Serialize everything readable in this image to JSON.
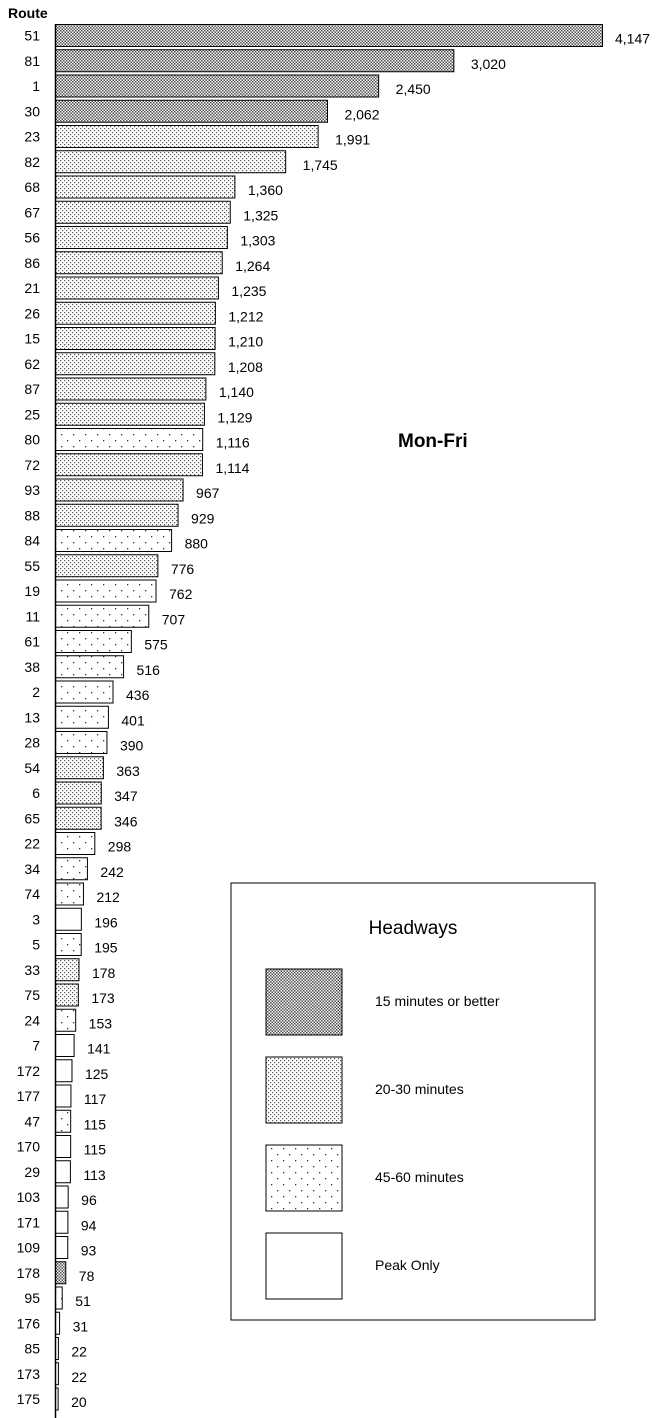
{
  "chart_data": {
    "type": "bar",
    "orientation": "horizontal",
    "title": "Mon-Fri",
    "ylabel": "Route",
    "xlim": [
      0,
      4147
    ],
    "grid": false,
    "legend_placement": "bottom-right",
    "legend": {
      "title": "Headways",
      "entries": [
        {
          "key": "hf",
          "label": "15 minutes or better"
        },
        {
          "key": "m",
          "label": "20-30 minutes"
        },
        {
          "key": "l",
          "label": "45-60 minutes"
        },
        {
          "key": "p",
          "label": "Peak Only"
        }
      ]
    },
    "categories": [
      "51",
      "81",
      "1",
      "30",
      "23",
      "82",
      "68",
      "67",
      "56",
      "86",
      "21",
      "26",
      "15",
      "62",
      "87",
      "25",
      "80",
      "72",
      "93",
      "88",
      "84",
      "55",
      "19",
      "11",
      "61",
      "38",
      "2",
      "13",
      "28",
      "54",
      "6",
      "65",
      "22",
      "34",
      "74",
      "3",
      "5",
      "33",
      "75",
      "24",
      "7",
      "172",
      "177",
      "47",
      "170",
      "29",
      "103",
      "171",
      "109",
      "178",
      "95",
      "176",
      "85",
      "173",
      "175"
    ],
    "values": [
      4147,
      3020,
      2450,
      2062,
      1991,
      1745,
      1360,
      1325,
      1303,
      1264,
      1235,
      1212,
      1210,
      1208,
      1140,
      1129,
      1116,
      1114,
      967,
      929,
      880,
      776,
      762,
      707,
      575,
      516,
      436,
      401,
      390,
      363,
      347,
      346,
      298,
      242,
      212,
      196,
      195,
      178,
      173,
      153,
      141,
      125,
      117,
      115,
      115,
      113,
      96,
      94,
      93,
      78,
      51,
      31,
      22,
      22,
      20
    ],
    "value_labels": [
      "4,147",
      "3,020",
      "2,450",
      "2,062",
      "1,991",
      "1,745",
      "1,360",
      "1,325",
      "1,303",
      "1,264",
      "1,235",
      "1,212",
      "1,210",
      "1,208",
      "1,140",
      "1,129",
      "1,116",
      "1,114",
      "967",
      "929",
      "880",
      "776",
      "762",
      "707",
      "575",
      "516",
      "436",
      "401",
      "390",
      "363",
      "347",
      "346",
      "298",
      "242",
      "212",
      "196",
      "195",
      "178",
      "173",
      "153",
      "141",
      "125",
      "117",
      "115",
      "115",
      "113",
      "96",
      "94",
      "93",
      "78",
      "51",
      "31",
      "22",
      "22",
      "20"
    ],
    "headway": [
      "hf",
      "hf",
      "hf",
      "hf",
      "m",
      "m",
      "m",
      "m",
      "m",
      "m",
      "m",
      "m",
      "m",
      "m",
      "m",
      "m",
      "l",
      "m",
      "m",
      "m",
      "l",
      "m",
      "l",
      "l",
      "l",
      "l",
      "l",
      "l",
      "l",
      "m",
      "m",
      "m",
      "l",
      "l",
      "l",
      "p",
      "l",
      "m",
      "m",
      "l",
      "p",
      "p",
      "p",
      "l",
      "p",
      "p",
      "p",
      "p",
      "p",
      "hf",
      "l",
      "p",
      "p",
      "p",
      "p"
    ]
  }
}
